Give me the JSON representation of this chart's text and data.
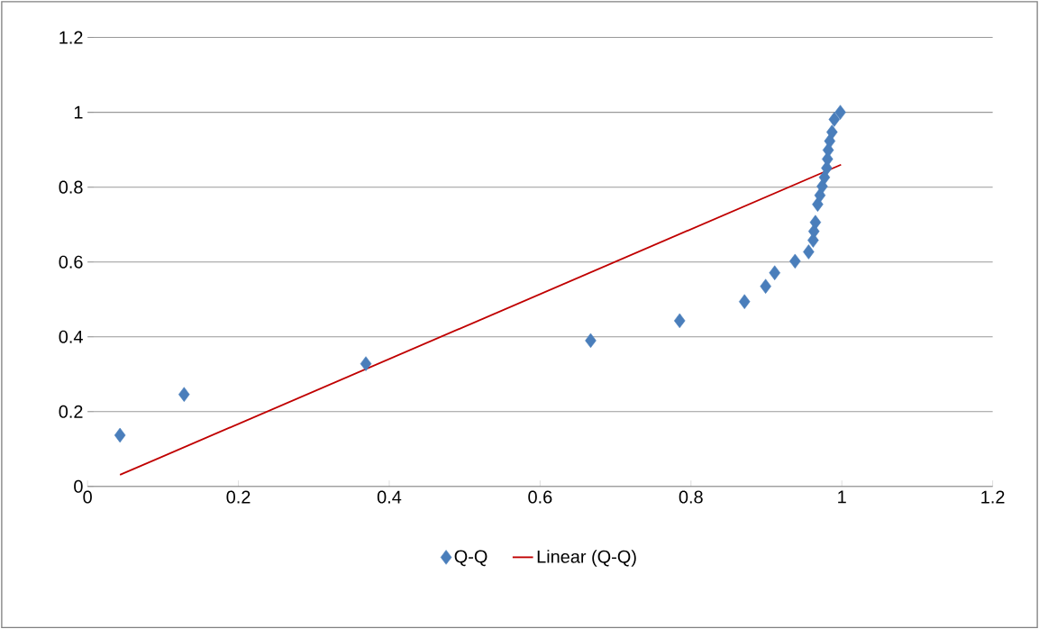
{
  "chart_data": {
    "type": "scatter",
    "marker": "diamond",
    "series": [
      {
        "name": "Q-Q",
        "color": "#4a7ebb",
        "x": [
          0.043,
          0.128,
          0.369,
          0.667,
          0.785,
          0.871,
          0.899,
          0.911,
          0.938,
          0.956,
          0.962,
          0.963,
          0.965,
          0.968,
          0.971,
          0.974,
          0.977,
          0.98,
          0.981,
          0.982,
          0.984,
          0.987,
          0.99,
          0.998
        ],
        "values": [
          0.137,
          0.246,
          0.328,
          0.39,
          0.443,
          0.494,
          0.535,
          0.571,
          0.602,
          0.627,
          0.658,
          0.682,
          0.706,
          0.754,
          0.778,
          0.802,
          0.826,
          0.851,
          0.875,
          0.899,
          0.923,
          0.947,
          0.981,
          1.0
        ]
      },
      {
        "name": "Linear (Q-Q)",
        "type": "line",
        "color": "#c00000",
        "marker": "none",
        "line_style": "solid",
        "x": [
          0.043,
          0.999
        ],
        "values": [
          0.031,
          0.86
        ]
      }
    ],
    "xlim": [
      0,
      1.2
    ],
    "ylim": [
      0,
      1.2
    ],
    "xticks": [
      0,
      0.2,
      0.4,
      0.6,
      0.8,
      1,
      1.2
    ],
    "yticks": [
      0,
      0.2,
      0.4,
      0.6,
      0.8,
      1,
      1.2
    ],
    "grid": "y",
    "legend": "bottom"
  }
}
